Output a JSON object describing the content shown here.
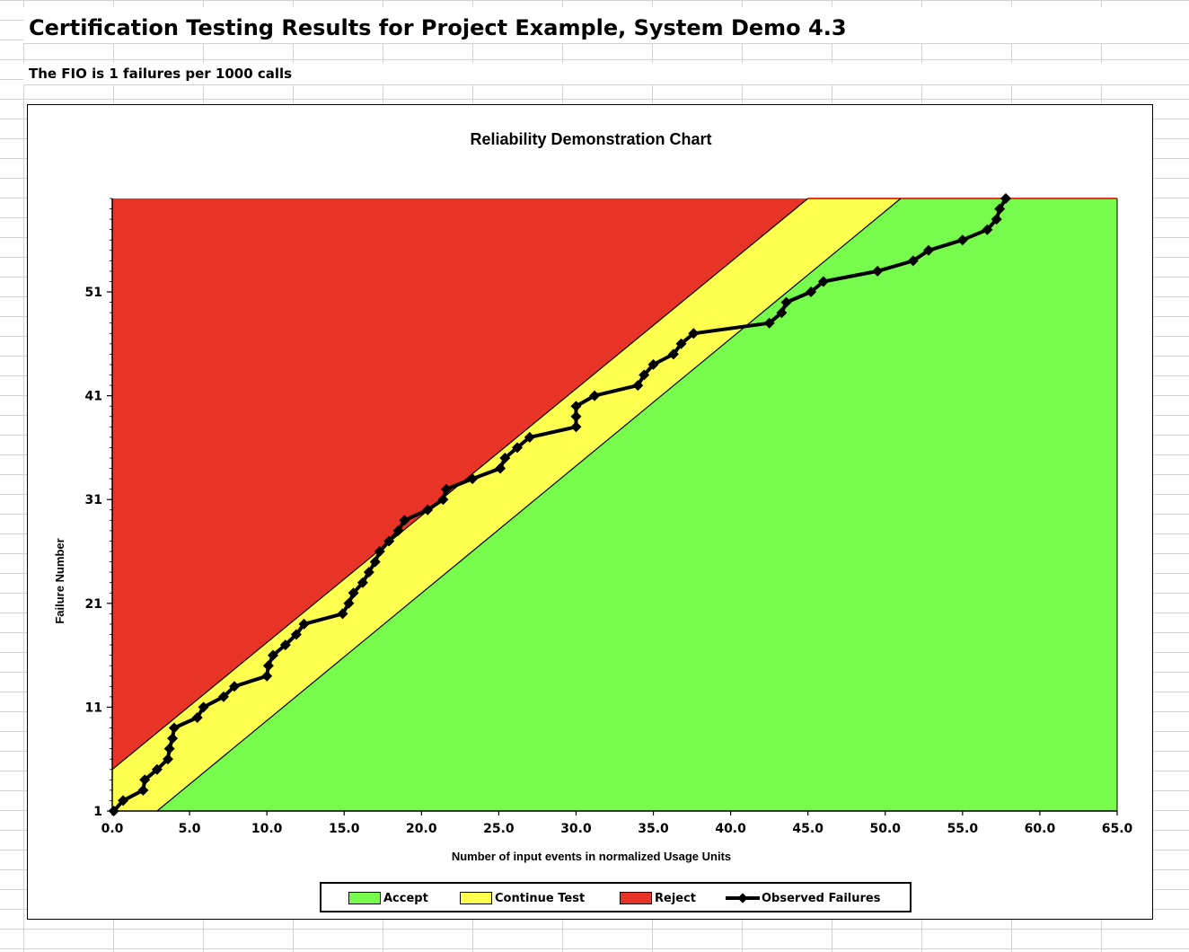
{
  "sheet": {
    "title": "Certification Testing Results for Project Example, System Demo 4.3",
    "subtitle": "The FIO is 1 failures per 1000 calls"
  },
  "chart_data": {
    "type": "area",
    "title": "Reliability Demonstration Chart",
    "xlabel": "Number of input events in normalized Usage Units",
    "ylabel": "Failure Number",
    "xlim": [
      0,
      65
    ],
    "ylim": [
      1,
      60
    ],
    "x_ticks": [
      "0.0",
      "5.0",
      "10.0",
      "15.0",
      "20.0",
      "25.0",
      "30.0",
      "35.0",
      "40.0",
      "45.0",
      "50.0",
      "55.0",
      "60.0",
      "65.0"
    ],
    "y_ticks": [
      "1",
      "11",
      "21",
      "31",
      "41",
      "51"
    ],
    "grid": false,
    "legend_position": "bottom",
    "colors": {
      "accept": "#77fb4c",
      "continue": "#ffff4f",
      "reject": "#e73427",
      "observed": "#000000"
    },
    "legend": [
      {
        "key": "accept",
        "label": "Accept"
      },
      {
        "key": "continue",
        "label": "Continue Test"
      },
      {
        "key": "reject",
        "label": "Reject"
      },
      {
        "key": "observed",
        "label": "Observed Failures"
      }
    ],
    "boundaries": {
      "reject_upper": [
        [
          0,
          5
        ],
        [
          45,
          60
        ]
      ],
      "accept_lower": [
        [
          2.9,
          1
        ],
        [
          51,
          60
        ]
      ]
    },
    "series": [
      {
        "name": "Observed Failures",
        "points": [
          [
            0.1,
            1
          ],
          [
            0.7,
            2
          ],
          [
            2.0,
            3
          ],
          [
            2.1,
            4
          ],
          [
            2.9,
            5
          ],
          [
            3.6,
            6
          ],
          [
            3.7,
            7
          ],
          [
            3.9,
            8
          ],
          [
            4.0,
            9
          ],
          [
            5.5,
            10
          ],
          [
            5.9,
            11
          ],
          [
            7.2,
            12
          ],
          [
            7.9,
            13
          ],
          [
            10.0,
            14
          ],
          [
            10.1,
            15
          ],
          [
            10.4,
            16
          ],
          [
            11.2,
            17
          ],
          [
            11.9,
            18
          ],
          [
            12.4,
            19
          ],
          [
            14.9,
            20
          ],
          [
            15.3,
            21
          ],
          [
            15.6,
            22
          ],
          [
            16.2,
            23
          ],
          [
            16.6,
            24
          ],
          [
            17.0,
            25
          ],
          [
            17.3,
            26
          ],
          [
            17.9,
            27
          ],
          [
            18.5,
            28
          ],
          [
            18.9,
            29
          ],
          [
            20.4,
            30
          ],
          [
            21.4,
            31
          ],
          [
            21.6,
            32
          ],
          [
            23.3,
            33
          ],
          [
            25.1,
            34
          ],
          [
            25.4,
            35
          ],
          [
            26.2,
            36
          ],
          [
            27.0,
            37
          ],
          [
            30.0,
            38
          ],
          [
            30.0,
            39
          ],
          [
            30.0,
            40
          ],
          [
            31.2,
            41
          ],
          [
            34.0,
            42
          ],
          [
            34.4,
            43
          ],
          [
            35.0,
            44
          ],
          [
            36.3,
            45
          ],
          [
            36.8,
            46
          ],
          [
            37.6,
            47
          ],
          [
            42.5,
            48
          ],
          [
            43.3,
            49
          ],
          [
            43.6,
            50
          ],
          [
            45.2,
            51
          ],
          [
            46.0,
            52
          ],
          [
            49.5,
            53
          ],
          [
            51.8,
            54
          ],
          [
            52.8,
            55
          ],
          [
            55.0,
            56
          ],
          [
            56.6,
            57
          ],
          [
            57.2,
            58
          ],
          [
            57.4,
            59
          ],
          [
            57.8,
            60
          ]
        ]
      }
    ]
  }
}
